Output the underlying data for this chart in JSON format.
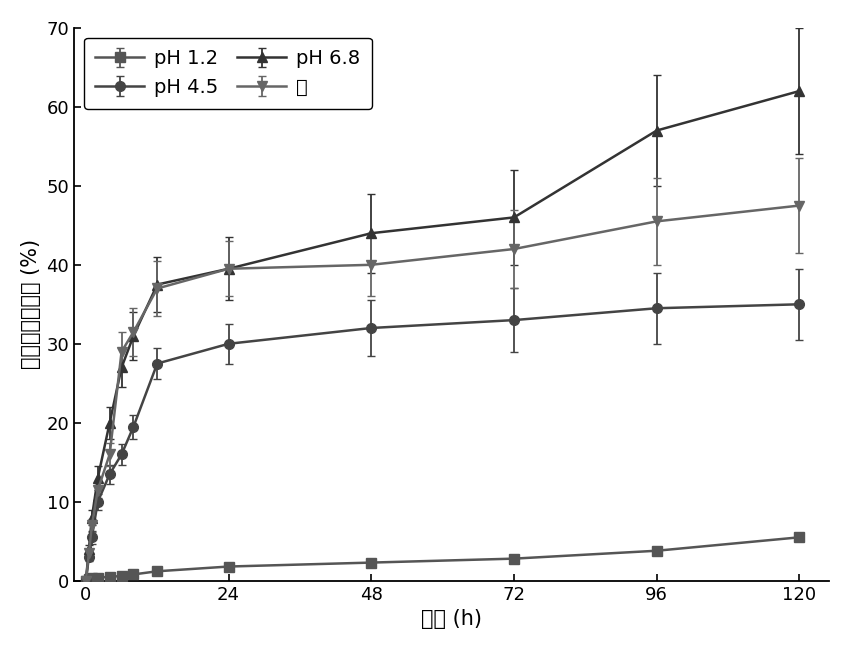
{
  "title": "",
  "xlabel": "时间 (h)",
  "ylabel": "累积释放百分数 (%)",
  "xlim": [
    -2,
    125
  ],
  "ylim": [
    0,
    70
  ],
  "yticks": [
    0,
    10,
    20,
    30,
    40,
    50,
    60,
    70
  ],
  "xticks": [
    0,
    24,
    48,
    72,
    96,
    120
  ],
  "series": {
    "pH 1.2": {
      "x": [
        0,
        0.5,
        1,
        2,
        4,
        6,
        8,
        12,
        24,
        48,
        72,
        96,
        120
      ],
      "y": [
        0,
        0.2,
        0.3,
        0.4,
        0.5,
        0.6,
        0.8,
        1.2,
        1.8,
        2.3,
        2.8,
        3.8,
        5.5
      ],
      "yerr": [
        0,
        0.1,
        0.1,
        0.1,
        0.1,
        0.1,
        0.1,
        0.2,
        0.3,
        0.3,
        0.3,
        0.5,
        0.5
      ],
      "marker": "s",
      "color": "#555555",
      "linestyle": "-"
    },
    "pH 4.5": {
      "x": [
        0,
        0.5,
        1,
        2,
        4,
        6,
        8,
        12,
        24,
        48,
        72,
        96,
        120
      ],
      "y": [
        0,
        3.0,
        5.5,
        10.0,
        13.5,
        16.0,
        19.5,
        27.5,
        30.0,
        32.0,
        33.0,
        34.5,
        35.0
      ],
      "yerr": [
        0,
        0.5,
        0.8,
        1.0,
        1.2,
        1.3,
        1.5,
        2.0,
        2.5,
        3.5,
        4.0,
        4.5,
        4.5
      ],
      "marker": "o",
      "color": "#444444",
      "linestyle": "-"
    },
    "pH 6.8": {
      "x": [
        0,
        0.5,
        1,
        2,
        4,
        6,
        8,
        12,
        24,
        48,
        72,
        96,
        120
      ],
      "y": [
        0,
        4.0,
        8.0,
        13.0,
        20.0,
        27.0,
        31.0,
        37.5,
        39.5,
        44.0,
        46.0,
        57.0,
        62.0
      ],
      "yerr": [
        0,
        0.5,
        1.0,
        1.5,
        2.0,
        2.5,
        3.0,
        3.5,
        4.0,
        5.0,
        6.0,
        7.0,
        8.0
      ],
      "marker": "^",
      "color": "#333333",
      "linestyle": "-"
    },
    "水": {
      "x": [
        0,
        0.5,
        1,
        2,
        4,
        6,
        8,
        12,
        24,
        48,
        72,
        96,
        120
      ],
      "y": [
        0,
        3.5,
        7.0,
        11.5,
        16.0,
        29.0,
        31.5,
        37.0,
        39.5,
        40.0,
        42.0,
        45.5,
        47.5
      ],
      "yerr": [
        0,
        0.5,
        0.8,
        1.0,
        1.5,
        2.5,
        3.0,
        3.5,
        3.5,
        4.0,
        5.0,
        5.5,
        6.0
      ],
      "marker": "v",
      "color": "#666666",
      "linestyle": "-"
    }
  },
  "legend_order": [
    "pH 1.2",
    "pH 4.5",
    "pH 6.8",
    "水"
  ],
  "background_color": "#ffffff",
  "line_width": 1.8,
  "marker_size": 7,
  "font_size_label": 15,
  "font_size_tick": 13,
  "font_size_legend": 14
}
